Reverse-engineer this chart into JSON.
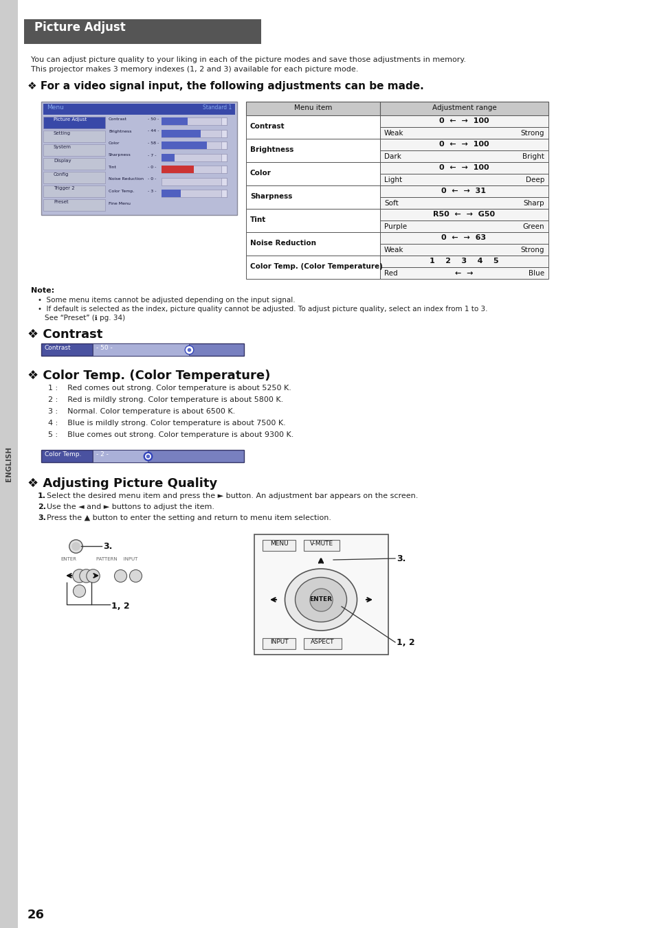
{
  "page_bg": "#ffffff",
  "header_bg": "#555555",
  "header_text": "Picture Adjust",
  "header_text_color": "#ffffff",
  "intro_line1": "You can adjust picture quality to your liking in each of the picture modes and save those adjustments in memory.",
  "intro_line2": "This projector makes 3 memory indexes (1, 2 and 3) available for each picture mode.",
  "section1_title": "❖ For a video signal input, the following adjustments can be made.",
  "table_headers": [
    "Menu item",
    "Adjustment range"
  ],
  "row_items": [
    "Contrast",
    "Brightness",
    "Color",
    "Sharpness",
    "Tint",
    "Noise Reduction",
    "Color Temp. (Color Temperature)"
  ],
  "row_ranges": [
    "0  ←  →  100",
    "0  ←  →  100",
    "0  ←  →  100",
    "0  ←  →  31",
    "R50  ←  →  G50",
    "0  ←  →  63",
    "1    2    3    4    5"
  ],
  "row_subs_left": [
    "Weak",
    "Dark",
    "Light",
    "Soft",
    "Purple",
    "Weak",
    "Red"
  ],
  "row_subs_right": [
    "Strong",
    "Bright",
    "Deep",
    "Sharp",
    "Green",
    "Strong",
    "←  →  Blue"
  ],
  "note_title": "Note:",
  "note_item1": "Some menu items cannot be adjusted depending on the input signal.",
  "note_item2a": "If default is selected as the index, picture quality cannot be adjusted. To adjust picture quality, select an index from 1 to 3.",
  "note_item2b": "See “Preset” (ℹ pg. 34)",
  "section2_title": "❖ Contrast",
  "contrast_label": "Contrast",
  "contrast_val": "- 50 -",
  "section3_title": "❖ Color Temp. (Color Temperature)",
  "ct_items": [
    "1 :    Red comes out strong. Color temperature is about 5250 K.",
    "2 :    Red is mildly strong. Color temperature is about 5800 K.",
    "3 :    Normal. Color temperature is about 6500 K.",
    "4 :    Blue is mildly strong. Color temperature is about 7500 K.",
    "5 :    Blue comes out strong. Color temperature is about 9300 K."
  ],
  "ct_label": "Color Temp.",
  "ct_val": "- 2 -",
  "section4_title": "❖ Adjusting Picture Quality",
  "steps": [
    "Select the desired menu item and press the ► button. An adjustment bar appears on the screen.",
    "Use the ◄ and ► buttons to adjust the item.",
    "Press the ▲ button to enter the setting and return to menu item selection."
  ],
  "page_number": "26",
  "sidebar_text": "ENGLISH",
  "bar_dark": "#4a52a0",
  "bar_mid": "#7880c0",
  "bar_light": "#aab0d8"
}
